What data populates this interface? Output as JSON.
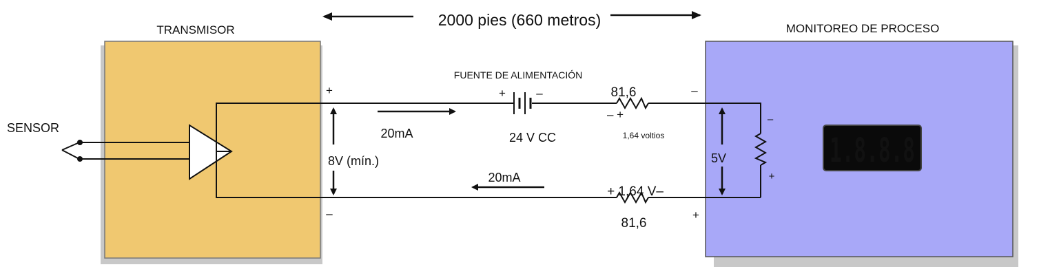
{
  "distance": "2000 pies (660 metros)",
  "transmitter": {
    "title": "TRANSMISOR",
    "fill": "#f0c870"
  },
  "monitor": {
    "title": "MONITOREO DE PROCESO",
    "fill": "#a8a8f8"
  },
  "sensor": {
    "label": "SENSOR"
  },
  "power_supply": {
    "title": "FUENTE DE ALIMENTACIÓN",
    "value": "24 V CC",
    "plus": "+",
    "minus": "–"
  },
  "top_resistor": {
    "value": "81,6",
    "polarity": "– +",
    "drop": "1,64 voltios"
  },
  "bottom_resistor": {
    "value": "81,6",
    "drop": "+ 1,64 V–"
  },
  "transmitter_voltage": "8V (mín.)",
  "transmitter_plus": "+",
  "transmitter_minus": "–",
  "current_top": "20mA",
  "current_bottom": "20mA",
  "monitor_voltage": "5V",
  "monitor_minus": "–",
  "monitor_plus": "+",
  "load_minus": "–",
  "load_plus": "+",
  "display": {
    "reading": "1.8.8.8",
    "color": "#e01818"
  }
}
